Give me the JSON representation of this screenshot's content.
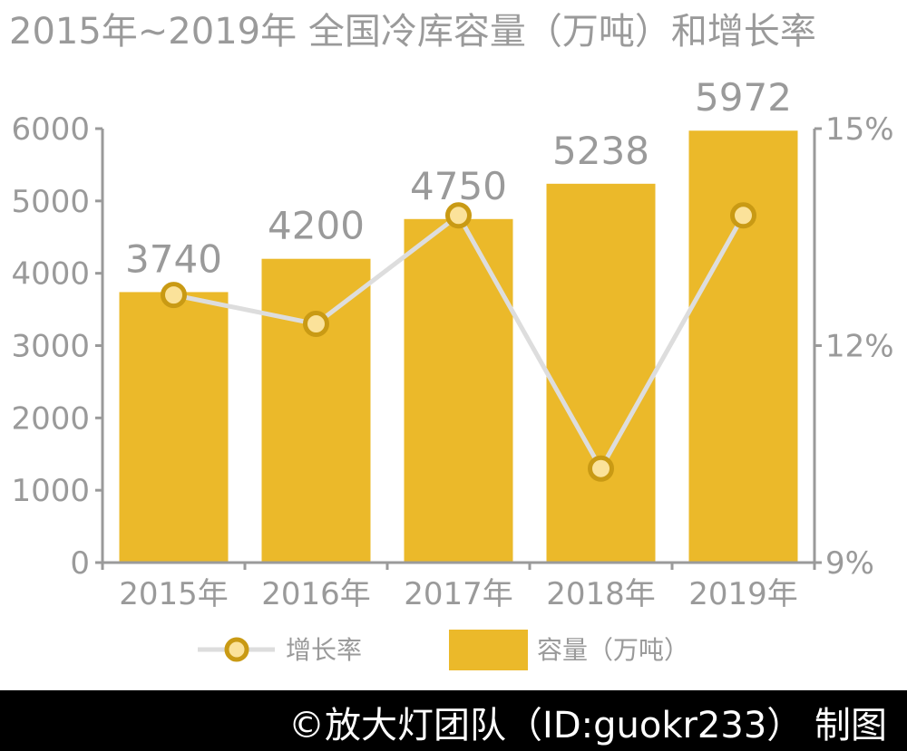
{
  "title": "2015年~2019年 全国冷库容量（万吨）和增长率",
  "credit": "©放大灯团队（ID:guokr233） 制图",
  "colors": {
    "bar": "#ebb92a",
    "line": "#dddddd",
    "marker_fill": "#fbe29a",
    "marker_stroke": "#c99a14",
    "axis": "#9a9a9a",
    "text": "#9a9a9a"
  },
  "chart_data": {
    "type": "bar",
    "categories": [
      "2015年",
      "2016年",
      "2017年",
      "2018年",
      "2019年"
    ],
    "series": [
      {
        "name": "容量（万吨）",
        "type": "bar",
        "axis": "left",
        "values": [
          3740,
          4200,
          4750,
          5238,
          5972
        ],
        "data_labels": [
          "3740",
          "4200",
          "4750",
          "5238",
          "5972"
        ]
      },
      {
        "name": "增长率",
        "type": "line",
        "axis": "right",
        "values": [
          12.7,
          12.3,
          13.8,
          10.3,
          13.8
        ]
      }
    ],
    "y_left": {
      "ylim": [
        0,
        6000
      ],
      "ticks": [
        0,
        1000,
        2000,
        3000,
        4000,
        5000,
        6000
      ]
    },
    "y_right": {
      "ylim": [
        9,
        15
      ],
      "ticks": [
        "9%",
        "12%",
        "15%"
      ],
      "tick_values": [
        9,
        12,
        15
      ]
    },
    "legend": {
      "placement": "bottom",
      "items": [
        "增长率",
        "容量（万吨）"
      ]
    },
    "grid": false
  }
}
